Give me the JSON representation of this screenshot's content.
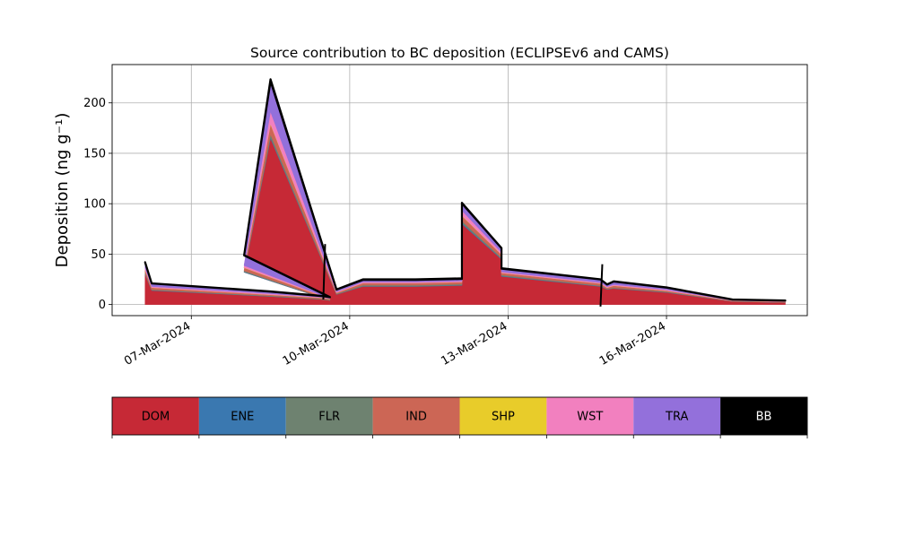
{
  "chart_data": {
    "type": "area",
    "title": "Source contribution to BC deposition (ECLIPSEv6 and CAMS)",
    "xlabel": "",
    "ylabel": "Deposition (ng g⁻¹)",
    "ylim": [
      -11,
      238
    ],
    "xlim": [
      "2024-03-05T12:00",
      "2024-03-18T16:00"
    ],
    "yticks": [
      0,
      50,
      100,
      150,
      200
    ],
    "xticks": [
      "2024-03-07",
      "2024-03-10",
      "2024-03-13",
      "2024-03-16"
    ],
    "xtick_labels": [
      "07-Mar-2024",
      "10-Mar-2024",
      "13-Mar-2024",
      "16-Mar-2024"
    ],
    "grid": true,
    "legend_position": "below the plot as a color bar",
    "x": [
      "2024-03-06T03:00",
      "2024-03-06T06:00",
      "2024-03-08T12:00",
      "2024-03-09T12:00",
      "2024-03-09T15:00",
      "2024-03-08T00:00",
      "2024-03-08T12:00",
      "2024-03-09T18:00",
      "2024-03-10T06:00",
      "2024-03-11T06:00",
      "2024-03-12T03:00",
      "2024-03-12T03:00",
      "2024-03-12T21:00",
      "2024-03-12T21:00",
      "2024-03-14T18:00",
      "2024-03-14T21:00",
      "2024-03-15T00:00",
      "2024-03-16T00:00",
      "2024-03-17T06:00",
      "2024-03-18T06:00"
    ],
    "series": [
      {
        "name": "DOM",
        "color": "#c62936",
        "values": [
          30,
          14,
          8,
          5,
          4,
          32,
          165,
          10,
          18,
          18,
          19,
          80,
          45,
          28,
          18,
          15,
          16,
          12,
          3,
          2
        ]
      },
      {
        "name": "ENE",
        "color": "#3a78b0",
        "values": [
          0.5,
          0.3,
          0.2,
          0.1,
          0.1,
          0.5,
          1,
          0.2,
          0.3,
          0.3,
          0.3,
          1,
          0.6,
          0.4,
          0.3,
          0.2,
          0.2,
          0.2,
          0.1,
          0.1
        ]
      },
      {
        "name": "FLR",
        "color": "#6e8270",
        "values": [
          1,
          0.5,
          0.5,
          0.5,
          0.5,
          1,
          3,
          0.5,
          1,
          1,
          1,
          2,
          1,
          1,
          0.5,
          0.5,
          0.5,
          0.5,
          0.2,
          0.2
        ]
      },
      {
        "name": "IND",
        "color": "#cc6655",
        "values": [
          3,
          2,
          1,
          1,
          1,
          3,
          10,
          1,
          2,
          2,
          2,
          5,
          3,
          2,
          2,
          1,
          2,
          1,
          0.5,
          0.5
        ]
      },
      {
        "name": "SHP",
        "color": "#e8cc2a",
        "values": [
          0.2,
          0.1,
          0.1,
          0.1,
          0.1,
          0.2,
          0.5,
          0.1,
          0.1,
          0.1,
          0.1,
          0.3,
          0.2,
          0.1,
          0.1,
          0.1,
          0.1,
          0.1,
          0.05,
          0.05
        ]
      },
      {
        "name": "WST",
        "color": "#f280bf",
        "values": [
          2,
          1,
          1,
          0.5,
          0.5,
          2,
          12,
          1,
          1,
          1,
          1,
          5,
          2,
          1,
          1,
          1,
          1,
          1,
          0.2,
          0.2
        ]
      },
      {
        "name": "TRA",
        "color": "#9370db",
        "values": [
          5,
          3,
          2,
          1,
          1,
          10,
          30,
          2,
          2,
          2,
          2,
          7,
          4,
          3,
          3,
          2,
          3,
          2,
          0.8,
          0.8
        ]
      },
      {
        "name": "BB",
        "color": "#000000",
        "values": [
          0.3,
          0.1,
          0.2,
          0.3,
          0.3,
          0.3,
          2,
          0.2,
          0.6,
          0.6,
          0.6,
          0.7,
          0.2,
          0.5,
          0.1,
          0.2,
          0.2,
          0.2,
          0.15,
          0.15
        ]
      }
    ],
    "spikes": [
      {
        "x": "2024-03-09T12:00",
        "low": 5,
        "high": 60
      },
      {
        "x": "2024-03-14T18:00",
        "low": -2,
        "high": 40
      }
    ]
  }
}
